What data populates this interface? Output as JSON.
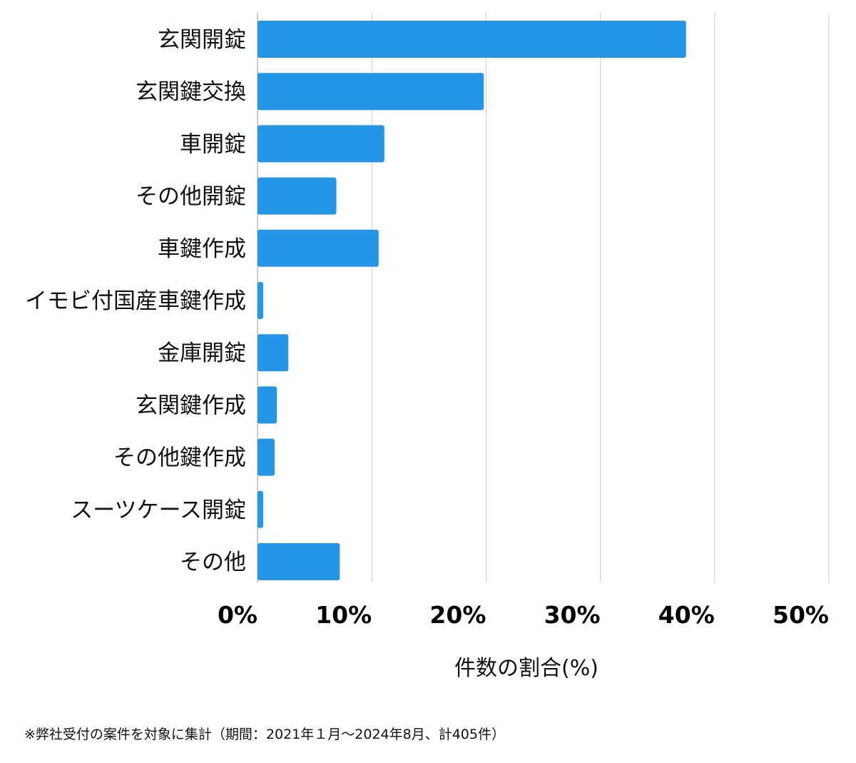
{
  "chart_data": {
    "type": "bar",
    "orientation": "horizontal",
    "categories": [
      "玄関開錠",
      "玄関鍵交換",
      "車開錠",
      "その他開錠",
      "車鍵作成",
      "イモビ付国産車鍵作成",
      "金庫開錠",
      "玄関鍵作成",
      "その他鍵作成",
      "スーツケース開錠",
      "その他"
    ],
    "values": [
      37.5,
      19.8,
      11.1,
      6.9,
      10.6,
      0.5,
      2.7,
      1.7,
      1.5,
      0.5,
      7.2
    ],
    "xlabel": "件数の割合(%)",
    "xlim": [
      0,
      50
    ],
    "xticks": [
      0,
      10,
      20,
      30,
      40,
      50
    ],
    "xtick_labels": [
      "0%",
      "10%",
      "20%",
      "30%",
      "40%",
      "50%"
    ],
    "bar_color": "#2596e6",
    "grid": true
  },
  "footnote": "※弊社受付の案件を対象に集計（期間：2021年１月〜2024年8月、計405件）"
}
